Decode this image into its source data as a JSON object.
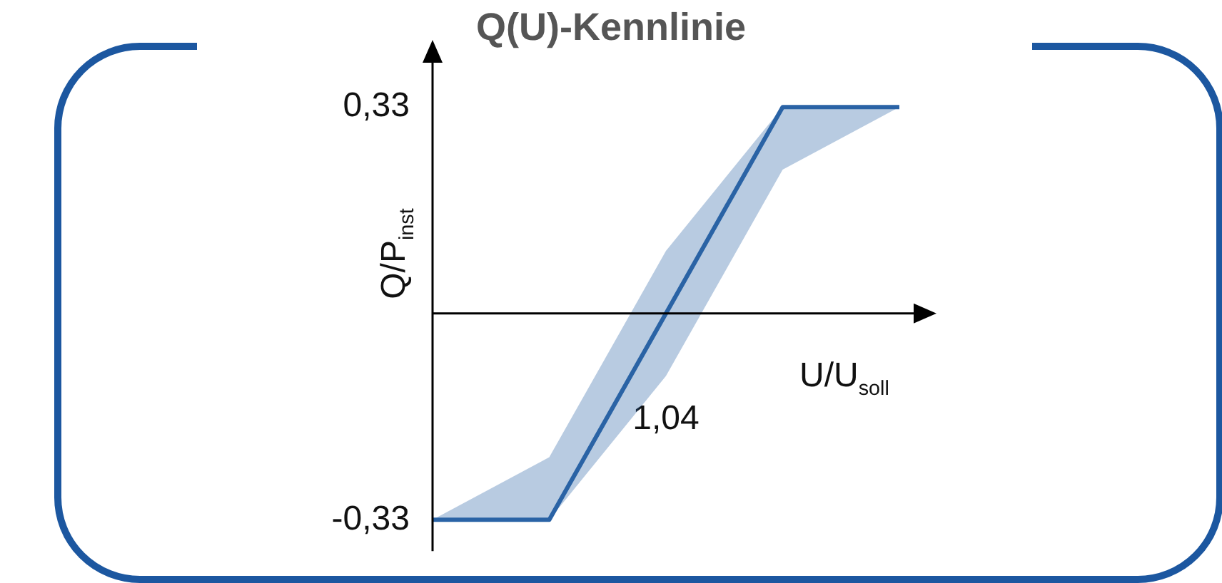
{
  "chart_data": {
    "type": "line",
    "title": "Q(U)-Kennlinie",
    "xlabel": "U/U$_{soll}$",
    "ylabel": "Q/P$_{inst}$",
    "categories": [
      null,
      null,
      "1,04",
      null,
      null
    ],
    "series": [
      {
        "color": "#2a63a6",
        "values": [
          -0.33,
          -0.33,
          0,
          0.33,
          0.33
        ],
        "lower": [
          -0.33,
          -0.33,
          -0.1,
          0.23,
          0.33
        ],
        "upper": [
          -0.33,
          -0.23,
          0.1,
          0.33,
          0.33
        ]
      }
    ],
    "ylim": [
      -0.38,
      0.41
    ],
    "yticks": [
      {
        "value": 0.33,
        "label": "0,33"
      },
      {
        "value": -0.33,
        "label": "-0,33"
      }
    ],
    "grid": false,
    "legend": false,
    "marker": "none",
    "line_style": "solid"
  }
}
